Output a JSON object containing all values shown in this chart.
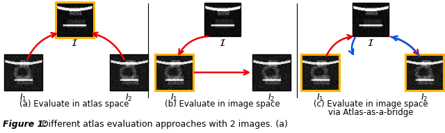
{
  "figsize": [
    6.4,
    1.91
  ],
  "dpi": 100,
  "bg_color": "white",
  "caption_a": "(a) Evaluate in atlas space",
  "caption_b": "(b) Evaluate in image space",
  "caption_c_line1": "(c) Evaluate in image space",
  "caption_c_line2": "via Atlas-as-a-bridge",
  "figure_label": "Figure 1:",
  "figure_text": " Different atlas evaluation approaches with 2 images. (a)",
  "label_I": "$\\mathcal{I}$",
  "label_I1": "$I_1$",
  "label_I2": "$I_2$",
  "arrow_color_red": "#ee0000",
  "arrow_color_blue": "#0055ee",
  "gold_border": "#FFB300",
  "caption_fontsize": 8.5,
  "figure_label_fontsize": 9.0,
  "note_fontsize": 8.5
}
